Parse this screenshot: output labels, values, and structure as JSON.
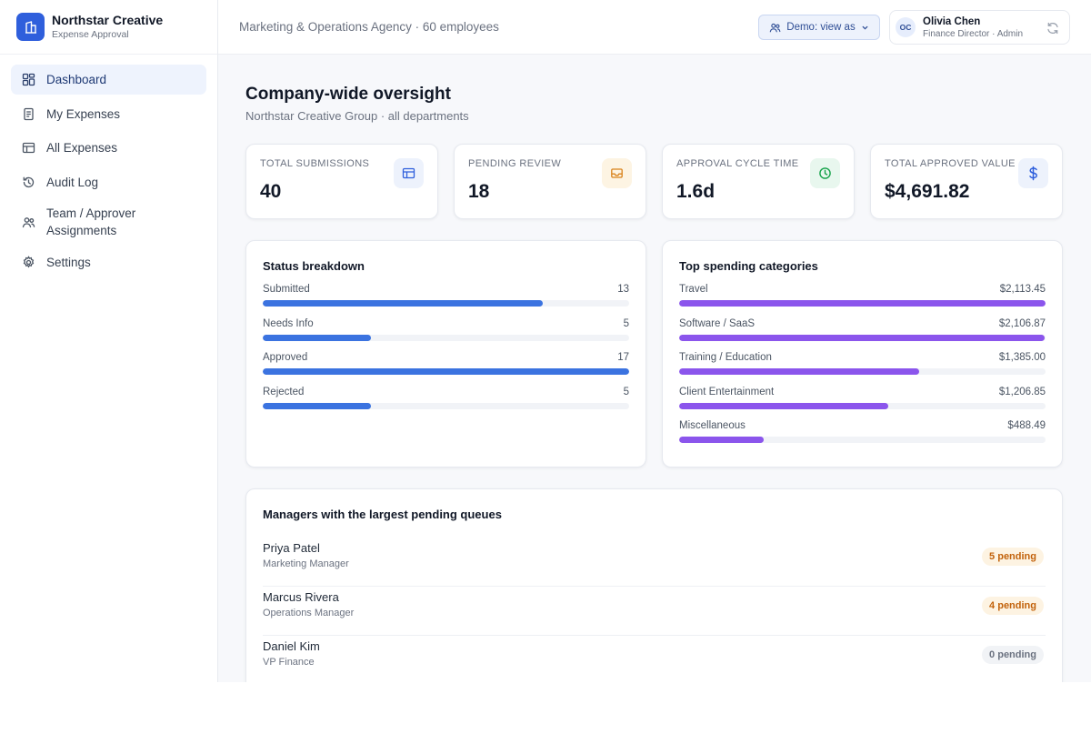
{
  "brand": {
    "name": "Northstar Creative",
    "subtitle": "Expense Approval"
  },
  "sidebar": {
    "items": [
      {
        "label": "Dashboard",
        "icon": "dashboard-icon",
        "active": true
      },
      {
        "label": "My Expenses",
        "icon": "receipt-icon"
      },
      {
        "label": "All Expenses",
        "icon": "table-icon"
      },
      {
        "label": "Audit Log",
        "icon": "history-icon"
      },
      {
        "label": "Team / Approver Assignments",
        "icon": "team-icon"
      },
      {
        "label": "Settings",
        "icon": "gear-icon"
      }
    ]
  },
  "topbar": {
    "org_line": "Marketing & Operations Agency · 60 employees",
    "demo_button": "Demo: view as",
    "user": {
      "initials": "OC",
      "name": "Olivia Chen",
      "role": "Finance Director · Admin"
    }
  },
  "page": {
    "title": "Company-wide oversight",
    "subtitle": "Northstar Creative Group · all departments"
  },
  "stats": [
    {
      "label": "TOTAL SUBMISSIONS",
      "value": "40",
      "icon": "table-icon",
      "color": "#2f5fdc",
      "bg": "#edf2fc"
    },
    {
      "label": "PENDING REVIEW",
      "value": "18",
      "icon": "inbox-icon",
      "color": "#d9821a",
      "bg": "#fdf4e3"
    },
    {
      "label": "APPROVAL CYCLE TIME",
      "value": "1.6d",
      "icon": "clock-icon",
      "color": "#16a34a",
      "bg": "#e8f7ee"
    },
    {
      "label": "TOTAL APPROVED VALUE",
      "value": "$4,691.82",
      "icon": "dollar-icon",
      "color": "#2f5fdc",
      "bg": "#edf2fc"
    }
  ],
  "status_breakdown": {
    "title": "Status breakdown",
    "color": "#3b73e0",
    "max": 17,
    "rows": [
      {
        "label": "Submitted",
        "value": "13",
        "n": 13
      },
      {
        "label": "Needs Info",
        "value": "5",
        "n": 5
      },
      {
        "label": "Approved",
        "value": "17",
        "n": 17
      },
      {
        "label": "Rejected",
        "value": "5",
        "n": 5
      }
    ]
  },
  "top_categories": {
    "title": "Top spending categories",
    "color": "#8b55ec",
    "max": 2113.45,
    "rows": [
      {
        "label": "Travel",
        "value": "$2,113.45",
        "n": 2113.45
      },
      {
        "label": "Software / SaaS",
        "value": "$2,106.87",
        "n": 2106.87
      },
      {
        "label": "Training / Education",
        "value": "$1,385.00",
        "n": 1385.0
      },
      {
        "label": "Client Entertainment",
        "value": "$1,206.85",
        "n": 1206.85
      },
      {
        "label": "Miscellaneous",
        "value": "$488.49",
        "n": 488.49
      }
    ]
  },
  "managers": {
    "title": "Managers with the largest pending queues",
    "rows": [
      {
        "name": "Priya Patel",
        "title": "Marketing Manager",
        "badge": "5 pending",
        "tone": "warn"
      },
      {
        "name": "Marcus Rivera",
        "title": "Operations Manager",
        "badge": "4 pending",
        "tone": "warn"
      },
      {
        "name": "Daniel Kim",
        "title": "VP Finance",
        "badge": "0 pending",
        "tone": "neutral"
      }
    ]
  },
  "badge_colors": {
    "warn": {
      "fg": "#c2620b",
      "bg": "#fdf3e2"
    },
    "neutral": {
      "fg": "#6b7280",
      "bg": "#f1f3f6"
    }
  }
}
